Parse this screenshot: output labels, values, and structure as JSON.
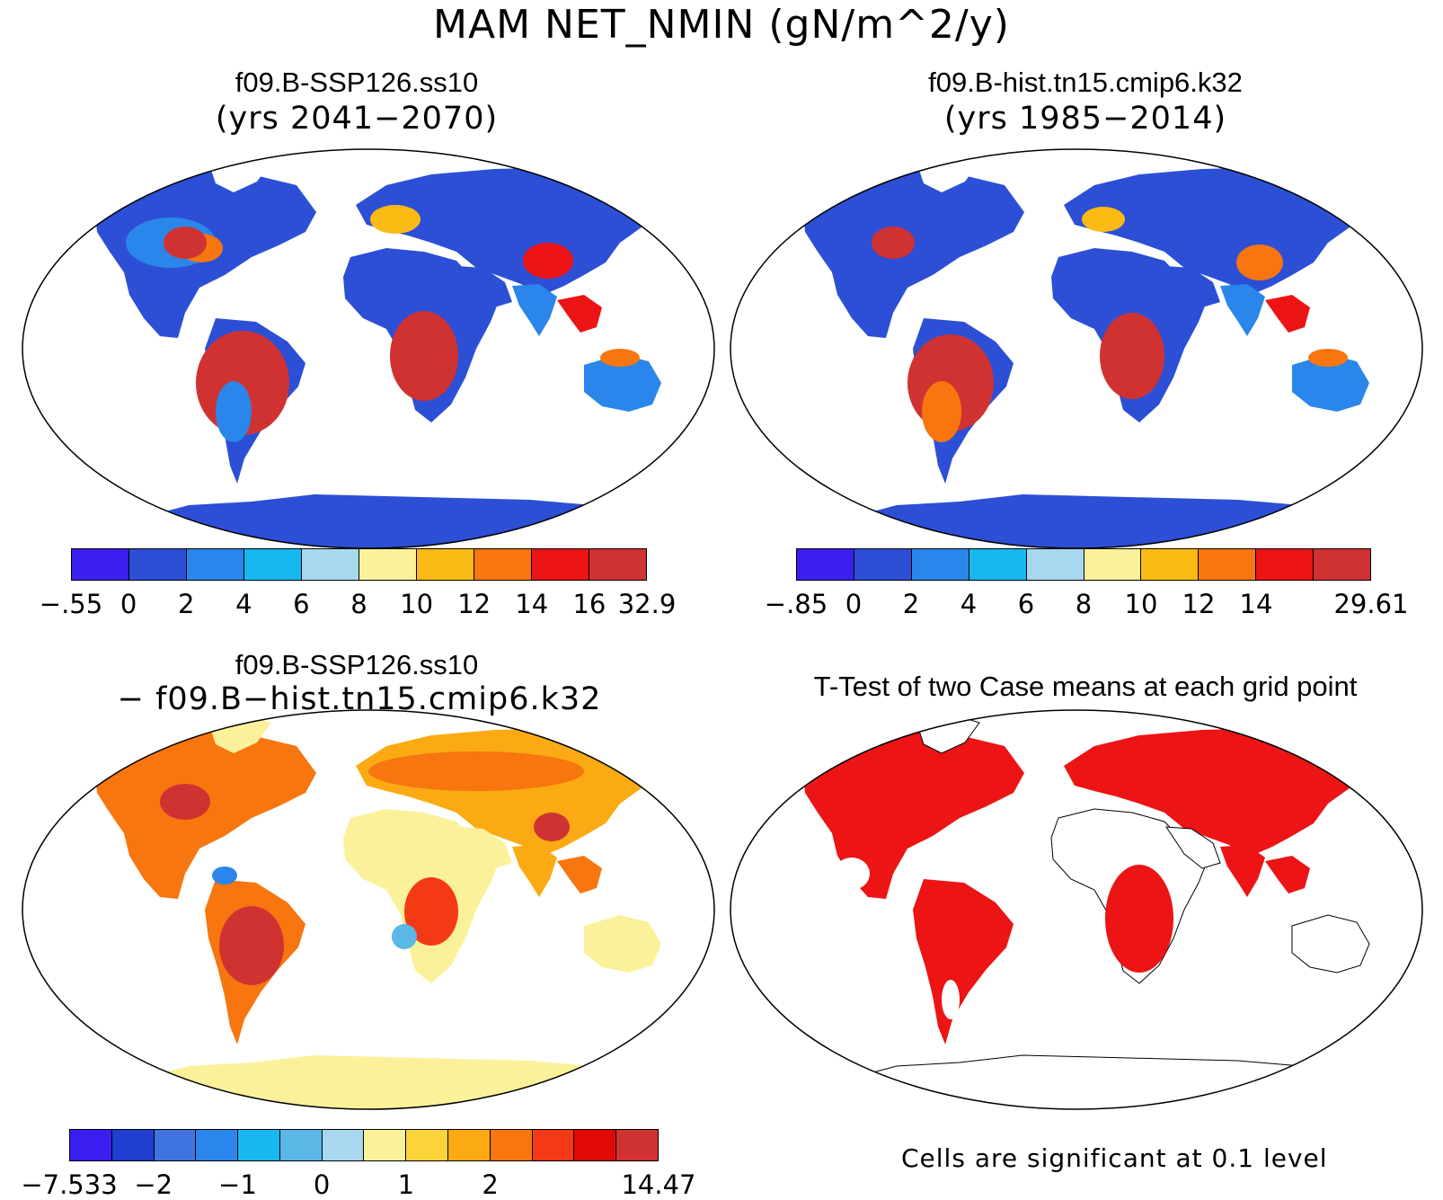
{
  "figure": {
    "title": "MAM NET_NMIN (gN/m^2/y)"
  },
  "panels": {
    "top_left": {
      "title": "f09.B-SSP126.ss10",
      "subtitle": "(yrs 2041−2070)"
    },
    "top_right": {
      "title": "f09.B-hist.tn15.cmip6.k32",
      "subtitle": "(yrs 1985−2014)"
    },
    "bottom_left": {
      "title": "f09.B-SSP126.ss10",
      "subtitle": "− f09.B−hist.tn15.cmip6.k32"
    },
    "bottom_right": {
      "title": "T-Test of two Case means at each grid point",
      "note": "Cells are significant at 0.1 level"
    }
  },
  "colorbars": {
    "cb1": {
      "colors": [
        "#3b1ff0",
        "#2c4fd6",
        "#2a86ea",
        "#17b8ef",
        "#a7d8ef",
        "#fbf19a",
        "#fbba14",
        "#f7760f",
        "#ec1414",
        "#d03232"
      ],
      "labels": [
        "−.55",
        "0",
        "2",
        "4",
        "6",
        "8",
        "10",
        "12",
        "14",
        "16",
        "32.9"
      ]
    },
    "cb2": {
      "colors": [
        "#3b1ff0",
        "#2c4fd6",
        "#2a86ea",
        "#17b8ef",
        "#a7d8ef",
        "#fbf19a",
        "#fbba14",
        "#f7760f",
        "#ec1414",
        "#d03232"
      ],
      "labels": [
        "−.85",
        "0",
        "2",
        "4",
        "6",
        "8",
        "10",
        "12",
        "14",
        "",
        "29.61"
      ]
    },
    "cb3": {
      "colors": [
        "#3b1ff0",
        "#1f3fd0",
        "#3f74e0",
        "#2a86ea",
        "#17b8ef",
        "#5ab7e6",
        "#a7d8ef",
        "#fbf19a",
        "#fbd43a",
        "#fbaa14",
        "#f7760f",
        "#f43a14",
        "#e20808",
        "#d03232"
      ],
      "labels": [
        "−7.533",
        "",
        "−2",
        "",
        "−1",
        "",
        "0",
        "",
        "1",
        "",
        "2",
        "",
        "",
        "",
        "14.47"
      ]
    }
  }
}
